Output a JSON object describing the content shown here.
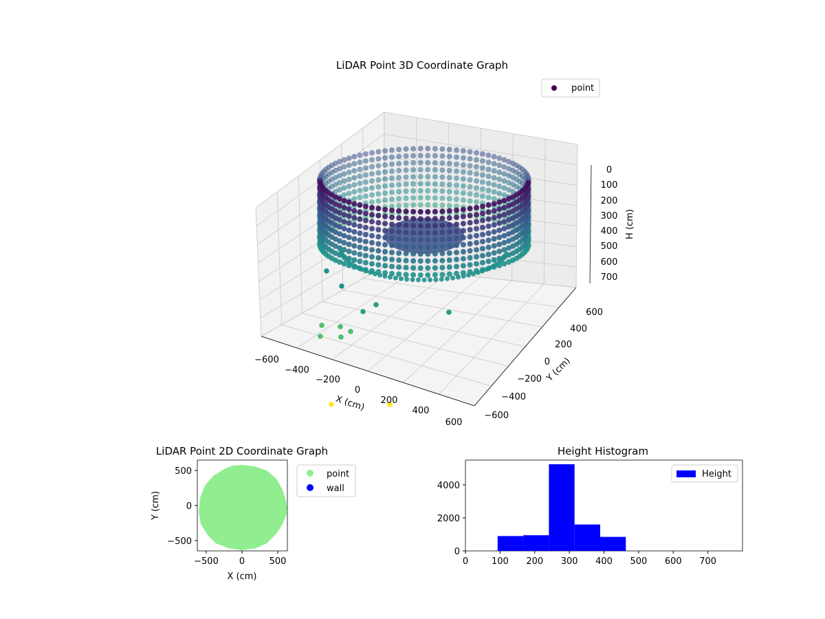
{
  "chart_data": [
    {
      "type": "scatter3d",
      "title": "LiDAR Point 3D Coordinate Graph",
      "xlabel": "X (cm)",
      "ylabel": "Y (cm)",
      "zlabel": "H (cm)",
      "xlim": [
        -600,
        600
      ],
      "ylim": [
        -600,
        600
      ],
      "zlim": [
        0,
        750
      ],
      "z_inverted": true,
      "x_ticks": [
        "−600",
        "−400",
        "−200",
        "0",
        "200",
        "400",
        "600"
      ],
      "y_ticks": [
        "600",
        "400",
        "200",
        "0",
        "−200",
        "−400",
        "−600"
      ],
      "z_ticks": [
        "0",
        "100",
        "200",
        "300",
        "400",
        "500",
        "600",
        "700"
      ],
      "legend": {
        "placement": "top-right",
        "entries": [
          {
            "label": "point",
            "color": "#440154"
          }
        ]
      },
      "colormap": "viridis",
      "series": [
        {
          "name": "point",
          "shape": "cylindrical wall",
          "radius_cm": 600,
          "height_range_cm": [
            0,
            480
          ],
          "floor_height_cm": 330
        }
      ],
      "outliers": [
        {
          "x": -300,
          "y": -200,
          "h": 700
        },
        {
          "x": -250,
          "y": -250,
          "h": 700
        },
        {
          "x": -200,
          "y": -150,
          "h": 700
        },
        {
          "x": -150,
          "y": -200,
          "h": 700
        },
        {
          "x": -50,
          "y": -650,
          "h": 800
        },
        {
          "x": 200,
          "y": -600,
          "h": 800
        }
      ],
      "grid": true
    },
    {
      "type": "scatter",
      "title": "LiDAR Point 2D Coordinate Graph",
      "xlabel": "X (cm)",
      "ylabel": "Y (cm)",
      "xlim": [
        -620,
        620
      ],
      "ylim": [
        -620,
        620
      ],
      "x_ticks": [
        "−500",
        "0",
        "500"
      ],
      "y_ticks": [
        "500",
        "0",
        "−500"
      ],
      "legend": {
        "placement": "outside-right",
        "entries": [
          {
            "label": "point",
            "color": "#90ee90"
          },
          {
            "label": "wall",
            "color": "#0000ff"
          }
        ]
      },
      "series": [
        {
          "name": "point",
          "shape": "filled disc",
          "radius_cm": 600,
          "color": "#90ee90"
        }
      ]
    },
    {
      "type": "bar",
      "title": "Height Histogram",
      "xlim": [
        0,
        800
      ],
      "ylim": [
        0,
        5500
      ],
      "x_ticks": [
        "0",
        "100",
        "200",
        "300",
        "400",
        "500",
        "600",
        "700"
      ],
      "y_ticks": [
        "0",
        "2000",
        "4000"
      ],
      "legend": {
        "placement": "top-right",
        "entries": [
          {
            "label": "Height",
            "color": "#0000ff"
          }
        ]
      },
      "color": "#0000ff",
      "bins": [
        {
          "start": 93,
          "end": 167,
          "count": 900
        },
        {
          "start": 167,
          "end": 241,
          "count": 950
        },
        {
          "start": 241,
          "end": 315,
          "count": 5250
        },
        {
          "start": 315,
          "end": 389,
          "count": 1600
        },
        {
          "start": 389,
          "end": 463,
          "count": 850
        }
      ]
    }
  ]
}
